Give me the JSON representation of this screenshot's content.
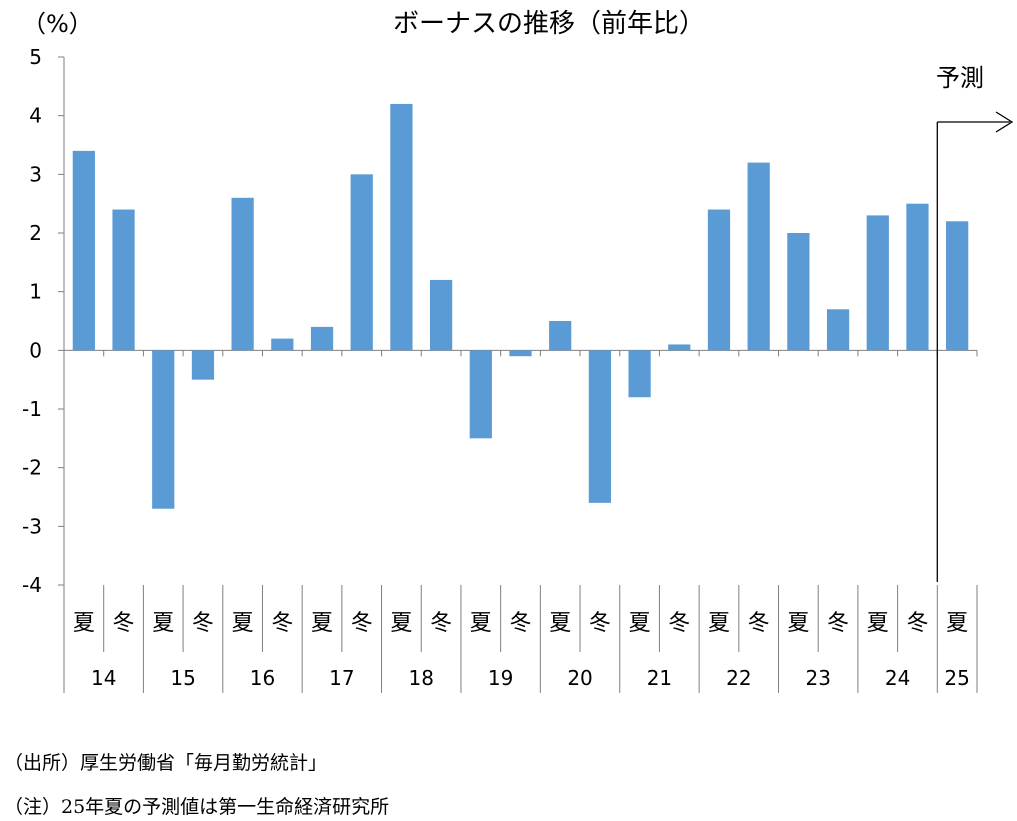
{
  "chart_data": {
    "type": "bar",
    "title": "ボーナスの推移（前年比）",
    "ylabel": "（%）",
    "ylim": [
      -4,
      5
    ],
    "yticks": [
      "5",
      "4",
      "3",
      "2",
      "1",
      "0",
      "-1",
      "-2",
      "-3",
      "-4"
    ],
    "ytick_values": [
      5,
      4,
      3,
      2,
      1,
      0,
      -1,
      -2,
      -3,
      -4
    ],
    "season_labels": [
      "夏",
      "冬",
      "夏",
      "冬",
      "夏",
      "冬",
      "夏",
      "冬",
      "夏",
      "冬",
      "夏",
      "冬",
      "夏",
      "冬",
      "夏",
      "冬",
      "夏",
      "冬",
      "夏",
      "冬",
      "夏",
      "冬",
      "夏"
    ],
    "year_labels": [
      "14",
      "15",
      "16",
      "17",
      "18",
      "19",
      "20",
      "21",
      "22",
      "23",
      "24",
      "25"
    ],
    "values": [
      3.4,
      2.4,
      -2.7,
      -0.5,
      2.6,
      0.2,
      0.4,
      3.0,
      4.2,
      1.2,
      -1.5,
      -0.1,
      0.5,
      -2.6,
      -0.8,
      0.1,
      2.4,
      3.2,
      2.0,
      0.7,
      2.3,
      2.5,
      2.2
    ],
    "forecast_label": "予測",
    "forecast_start_index": 22,
    "bar_color": "#5B9BD5"
  },
  "notes": {
    "source": "（出所）厚生労働省「毎月勤労統計」",
    "forecast": "（注）25年夏の予測値は第一生命経済研究所"
  }
}
